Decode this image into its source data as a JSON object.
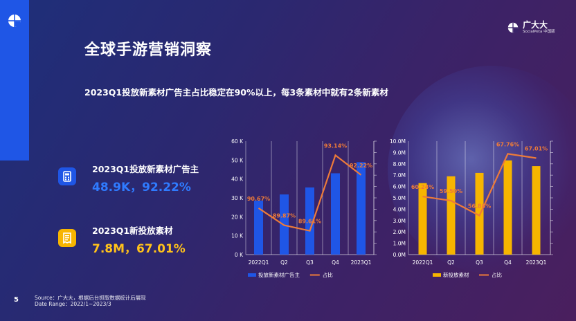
{
  "page": {
    "title": "全球手游营销洞察",
    "subtitle": "2023Q1投放新素材广告主占比稳定在90%以上，每3条素材中就有2条新素材",
    "page_number": "5",
    "source_line1": "Source：广大大，根据后台抓取数据统计后展现",
    "source_line2": "Date Range：2022/1~2023/3",
    "brand_name": "广大大",
    "brand_sub": "SocialPeta 中国版"
  },
  "kpis": [
    {
      "label": "2023Q1投放新素材广告主",
      "value": "48.9K，92.22%",
      "icon": "document-icon",
      "color": "#1f56e6"
    },
    {
      "label": "2023Q1新投放素材",
      "value": "7.8M，67.01%",
      "icon": "receipt-icon",
      "color": "#f7b500"
    }
  ],
  "colors": {
    "blue_bar": "#1f56e6",
    "yellow_bar": "#f7b500",
    "line": "#ee7b39",
    "blue_value": "#2f7bff",
    "yellow_value": "#ffc21a"
  },
  "chart_data": [
    {
      "type": "bar",
      "categories": [
        "2022Q1",
        "Q2",
        "Q3",
        "Q4",
        "2023Q1"
      ],
      "ylim": [
        0,
        60000
      ],
      "yticks": [
        0,
        10000,
        20000,
        30000,
        40000,
        50000,
        60000
      ],
      "ytick_labels": [
        "0 K",
        "10 K",
        "20 K",
        "30 K",
        "40 K",
        "50 K",
        "60 K"
      ],
      "series": [
        {
          "name": "投放新素材广告主",
          "type": "bar",
          "values": [
            28500,
            31800,
            35500,
            43000,
            48900
          ]
        },
        {
          "name": "占比",
          "type": "line",
          "values": [
            90.67,
            89.87,
            89.61,
            93.14,
            92.22
          ],
          "labels": [
            "90.67%",
            "89.87%",
            "89.61%",
            "93.14%",
            "92.22%"
          ],
          "y2lim": [
            88.5,
            93.8
          ]
        }
      ]
    },
    {
      "type": "bar",
      "categories": [
        "2022Q1",
        "Q2",
        "Q3",
        "Q4",
        "2023Q1"
      ],
      "ylim": [
        0,
        10000000
      ],
      "yticks": [
        0,
        1000000,
        2000000,
        3000000,
        4000000,
        5000000,
        6000000,
        7000000,
        8000000,
        9000000,
        10000000
      ],
      "ytick_labels": [
        "0.0M",
        "1.0M",
        "2.0M",
        "3.0M",
        "4.0M",
        "5.0M",
        "6.0M",
        "7.0M",
        "8.0M",
        "9.0M",
        "10.0M"
      ],
      "series": [
        {
          "name": "新投放素材",
          "type": "bar",
          "values": [
            6300000,
            6900000,
            7200000,
            8300000,
            7800000
          ]
        },
        {
          "name": "占比",
          "type": "line",
          "values": [
            60.24,
            59.5,
            56.88,
            67.76,
            67.01
          ],
          "labels": [
            "60.24%",
            "59.50%",
            "56.88%",
            "67.76%",
            "67.01%"
          ],
          "y2lim": [
            50,
            70
          ]
        }
      ]
    }
  ]
}
